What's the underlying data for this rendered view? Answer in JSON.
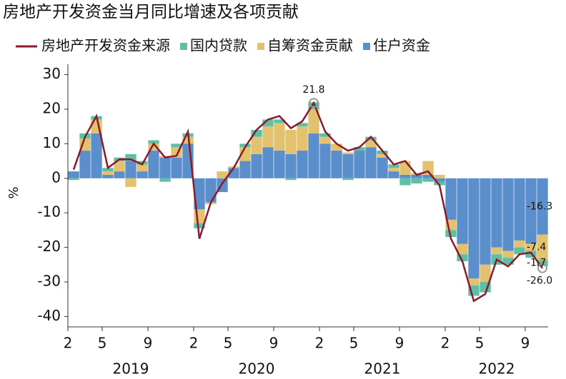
{
  "chart_data": {
    "type": "bar",
    "title": "房地产开发资金当月同比增速及各项贡献",
    "y_label": "%",
    "categories": [
      "2",
      null,
      null,
      "5",
      null,
      null,
      null,
      "9",
      null,
      null,
      null,
      "2",
      null,
      null,
      "5",
      null,
      null,
      null,
      "9",
      null,
      null,
      null,
      "2",
      null,
      null,
      "5",
      null,
      null,
      null,
      "9",
      null,
      null,
      null,
      "2",
      null,
      null,
      "5",
      null,
      null,
      null,
      "9",
      null
    ],
    "years": [
      "2019",
      "2020",
      "2021",
      "2022"
    ],
    "ylim": [
      -43,
      33
    ],
    "yticks": [
      -40,
      -30,
      -20,
      -10,
      0,
      10,
      20,
      30
    ],
    "series": [
      {
        "name": "房地产开发资金来源",
        "type": "line",
        "color": "#8b1a2e",
        "values": [
          2.5,
          12,
          18,
          3,
          5.5,
          5.5,
          4,
          10,
          6,
          6.5,
          13.5,
          -17.5,
          -7,
          -1.5,
          3,
          9,
          14,
          17,
          18,
          14.5,
          16.5,
          21.8,
          13.5,
          10,
          8,
          9,
          12,
          8,
          4,
          5,
          1,
          2,
          -2,
          -17.5,
          -24,
          -35.5,
          -33.5,
          -23.5,
          -25.5,
          -22,
          -21.5,
          -26
        ],
        "value_labels": [
          null,
          null,
          null,
          null,
          null,
          null,
          null,
          null,
          null,
          null,
          null,
          null,
          null,
          null,
          null,
          null,
          null,
          null,
          null,
          null,
          null,
          "21.8",
          null,
          null,
          null,
          null,
          null,
          null,
          null,
          null,
          null,
          null,
          null,
          null,
          null,
          null,
          null,
          null,
          null,
          null,
          null,
          "-26.0"
        ]
      },
      {
        "name": "国内贷款",
        "type": "bar",
        "color": "#5cbfa6",
        "values": [
          -0.5,
          1.5,
          1,
          1,
          1,
          2,
          1,
          1,
          -1,
          1,
          1,
          -1.5,
          0,
          0,
          0,
          1,
          2,
          2,
          1,
          -0.5,
          1,
          2,
          1,
          0,
          -0.5,
          1,
          1,
          1,
          1,
          -2,
          -1.5,
          -1,
          -1,
          -2,
          -2,
          -3,
          -3,
          -3,
          -2,
          -2,
          -2,
          -1.7
        ],
        "value_labels": [
          null,
          null,
          null,
          null,
          null,
          null,
          null,
          null,
          null,
          null,
          null,
          null,
          null,
          null,
          null,
          null,
          null,
          null,
          null,
          null,
          null,
          null,
          null,
          null,
          null,
          null,
          null,
          null,
          null,
          null,
          null,
          null,
          null,
          null,
          null,
          null,
          null,
          null,
          null,
          null,
          null,
          "-1.7"
        ]
      },
      {
        "name": "自筹资金贡献",
        "type": "bar",
        "color": "#e2c26e",
        "values": [
          0,
          3.5,
          4,
          1,
          3,
          -2.5,
          2,
          2,
          0.5,
          3,
          2,
          -4,
          -0.5,
          2,
          0.5,
          4,
          5,
          6,
          8,
          7,
          7,
          7,
          2,
          2,
          0.5,
          0,
          2,
          1,
          1,
          4,
          0.5,
          4,
          1,
          -3,
          -3,
          -2,
          -5,
          -2,
          -2,
          -2,
          -2,
          -7.4
        ],
        "value_labels": [
          null,
          null,
          null,
          null,
          null,
          null,
          null,
          null,
          null,
          null,
          null,
          null,
          null,
          null,
          null,
          null,
          null,
          null,
          null,
          null,
          null,
          null,
          null,
          null,
          null,
          null,
          null,
          null,
          null,
          null,
          null,
          null,
          null,
          null,
          null,
          null,
          null,
          null,
          null,
          null,
          null,
          "-7.4"
        ]
      },
      {
        "name": "住户资金",
        "type": "bar",
        "color": "#5b8fcc",
        "values": [
          2,
          8,
          13,
          1,
          2,
          5,
          2,
          8,
          6,
          6,
          10,
          -9,
          -7,
          -4,
          3,
          5,
          7,
          9,
          8,
          7,
          8,
          13,
          10,
          8,
          7,
          8,
          9,
          6,
          2,
          1,
          1,
          1,
          -1,
          -12,
          -19,
          -29,
          -25,
          -20,
          -21,
          -18,
          -19,
          -16.3
        ],
        "value_labels": [
          null,
          null,
          null,
          null,
          null,
          null,
          null,
          null,
          null,
          null,
          null,
          null,
          null,
          null,
          null,
          null,
          null,
          null,
          null,
          null,
          null,
          null,
          null,
          null,
          null,
          null,
          null,
          null,
          null,
          null,
          null,
          null,
          null,
          null,
          null,
          null,
          null,
          null,
          null,
          null,
          null,
          "-16.3"
        ]
      }
    ]
  }
}
